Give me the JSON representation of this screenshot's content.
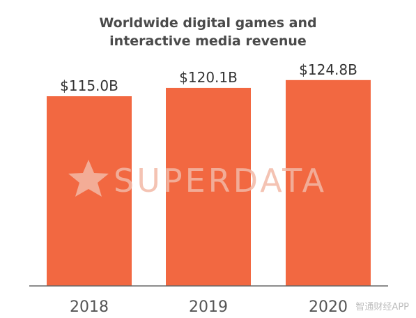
{
  "chart_data": {
    "type": "bar",
    "title_lines": [
      "Worldwide digital games and",
      "interactive media revenue"
    ],
    "categories": [
      "2018",
      "2019",
      "2020"
    ],
    "values": [
      115.0,
      120.1,
      124.8
    ],
    "value_labels": [
      "$115.0B",
      "$120.1B",
      "$124.8B"
    ],
    "bar_color": "#f26841",
    "ylim": [
      0,
      130
    ],
    "grid": false
  },
  "watermark": "SUPERDATA",
  "corner_watermark": "智通财经APP"
}
